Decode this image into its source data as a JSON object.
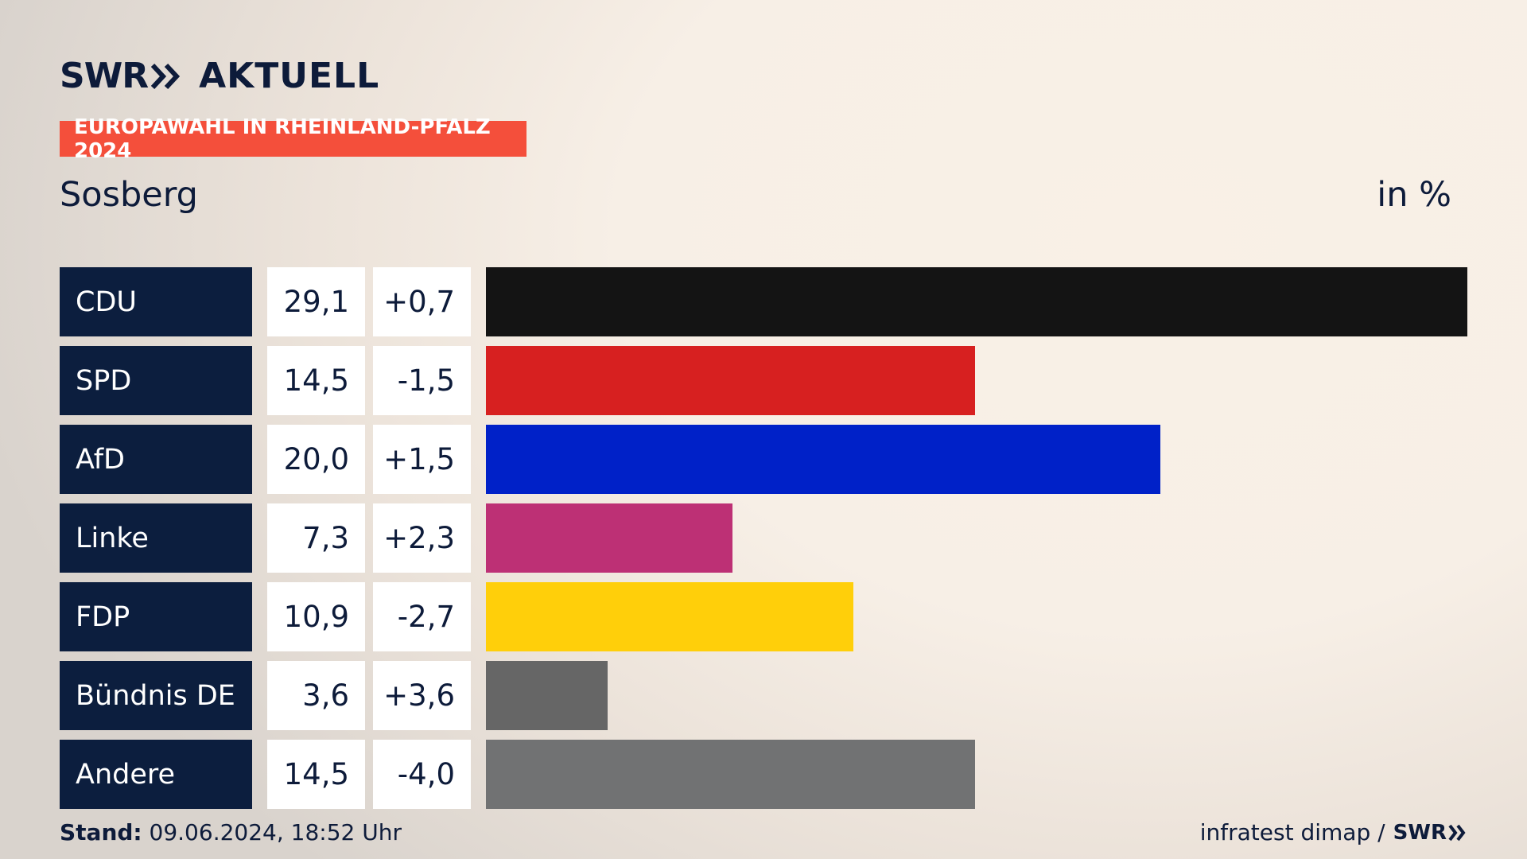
{
  "brand": {
    "swr": "SWR",
    "aktuell": "AKTUELL",
    "color": "#0d1b3a"
  },
  "banner": {
    "text": "EUROPAWAHL IN RHEINLAND-PFALZ 2024",
    "color": "#f44f3b"
  },
  "header": {
    "location": "Sosberg",
    "unit": "in %"
  },
  "chart_data": {
    "type": "bar",
    "orientation": "horizontal",
    "categories": [
      "CDU",
      "SPD",
      "AfD",
      "Linke",
      "FDP",
      "Bündnis DE",
      "Andere"
    ],
    "values": [
      29.1,
      14.5,
      20.0,
      7.3,
      10.9,
      3.6,
      14.5
    ],
    "value_labels": [
      "29,1",
      "14,5",
      "20,0",
      "7,3",
      "10,9",
      "3,6",
      "14,5"
    ],
    "change_labels": [
      "+0,7",
      "-1,5",
      "+1,5",
      "+2,3",
      "-2,7",
      "+3,6",
      "-4,0"
    ],
    "colors": [
      "#141414",
      "#d72020",
      "#0021c8",
      "#bd3075",
      "#ffcf0a",
      "#666666",
      "#717273"
    ],
    "xlim": [
      0,
      29.1
    ],
    "grid": false,
    "legend": "none"
  },
  "footer": {
    "stand_label": "Stand:",
    "stand_value": "09.06.2024, 18:52 Uhr",
    "source": "infratest dimap /",
    "swr": "SWR"
  }
}
